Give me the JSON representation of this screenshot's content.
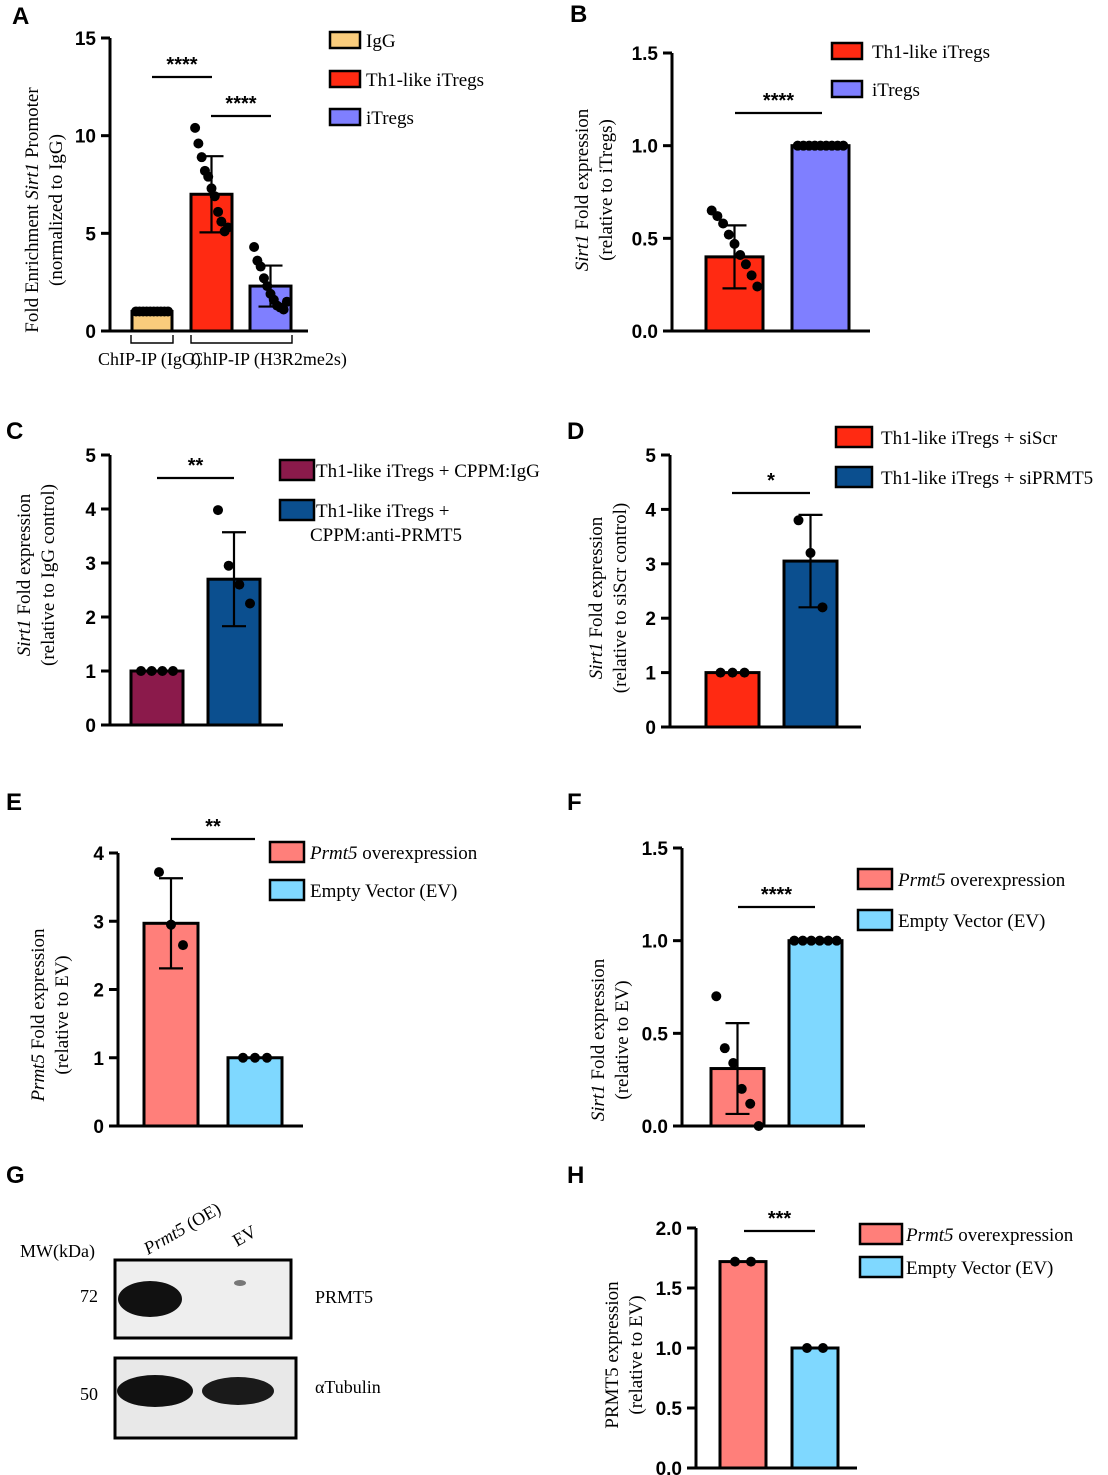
{
  "chart_data": [
    {
      "id": "A",
      "type": "bar",
      "label": "A",
      "ylabel_parts": [
        "Fold Enrichment ",
        "Sirt1",
        " Promoter"
      ],
      "ylabel2": "(normalized to IgG)",
      "yticks": [
        "0",
        "5",
        "10",
        "15"
      ],
      "ylim": [
        0,
        15
      ],
      "categories": [
        "IgG",
        "Th1-like iTregs",
        "iTregs"
      ],
      "series": [
        {
          "name": "IgG",
          "value": 1.0,
          "sd": 0.05,
          "color": "#f9cc7c",
          "points": [
            1,
            1,
            1,
            1,
            1,
            1,
            1,
            1,
            1,
            1
          ]
        },
        {
          "name": "Th1-like iTregs",
          "value": 7.0,
          "sd": 1.95,
          "color": "#ff2a12",
          "points": [
            10.4,
            9.6,
            8.9,
            8.2,
            7.9,
            7.3,
            6.9,
            6.1,
            5.6,
            5.1,
            5.3
          ]
        },
        {
          "name": "iTregs",
          "value": 2.3,
          "sd": 1.05,
          "color": "#7f7fff",
          "points": [
            4.3,
            3.6,
            3.3,
            2.7,
            2.3,
            1.9,
            1.6,
            1.3,
            1.2,
            1.1,
            1.5
          ]
        }
      ],
      "groups": [
        "ChIP-IP (IgG)",
        "ChIP-IP (H3R2me2s)"
      ],
      "comparisons": [
        {
          "pair": [
            0,
            1
          ],
          "label": "****"
        },
        {
          "pair": [
            1,
            2
          ],
          "label": "****"
        }
      ]
    },
    {
      "id": "B",
      "type": "bar",
      "label": "B",
      "ylabel_parts": [
        "Sirt1",
        " Fold expression"
      ],
      "ylabel2": "(relative to iTregs)",
      "yticks": [
        "0.0",
        "0.5",
        "1.0",
        "1.5"
      ],
      "ylim": [
        0,
        1.5
      ],
      "categories": [
        "Th1-like iTregs",
        "iTregs"
      ],
      "series": [
        {
          "name": "Th1-like iTregs",
          "value": 0.4,
          "sd": 0.17,
          "color": "#ff2a12",
          "points": [
            0.65,
            0.62,
            0.58,
            0.52,
            0.47,
            0.41,
            0.36,
            0.3,
            0.24
          ]
        },
        {
          "name": "iTregs",
          "value": 1.0,
          "sd": 0.0,
          "color": "#7f7fff",
          "points": [
            1,
            1,
            1,
            1,
            1,
            1,
            1,
            1,
            1
          ]
        }
      ],
      "comparisons": [
        {
          "pair": [
            0,
            1
          ],
          "label": "****"
        }
      ]
    },
    {
      "id": "C",
      "type": "bar",
      "label": "C",
      "ylabel_parts": [
        "Sirt1",
        " Fold expression"
      ],
      "ylabel2": "(relative to IgG control)",
      "yticks": [
        "0",
        "1",
        "2",
        "3",
        "4",
        "5"
      ],
      "ylim": [
        0,
        5
      ],
      "categories": [
        "Th1-like iTregs + CPPM:IgG",
        "Th1-like iTregs + CPPM:anti-PRMT5"
      ],
      "series": [
        {
          "name": "Th1-like iTregs + CPPM:IgG",
          "value": 1.0,
          "sd": 0.0,
          "color": "#8b1a4b",
          "points": [
            1,
            1,
            1,
            1
          ]
        },
        {
          "name": "Th1-like iTregs + CPPM:anti-PRMT5",
          "value": 2.7,
          "sd": 0.87,
          "color": "#0b4f8f",
          "points": [
            3.98,
            2.95,
            2.6,
            2.25
          ]
        }
      ],
      "legend_lines": [
        [
          "Th1-like iTregs + CPPM:IgG"
        ],
        [
          "Th1-like iTregs +",
          "CPPM:anti-PRMT5"
        ]
      ],
      "comparisons": [
        {
          "pair": [
            0,
            1
          ],
          "label": "**"
        }
      ]
    },
    {
      "id": "D",
      "type": "bar",
      "label": "D",
      "ylabel_parts": [
        "Sirt1",
        " Fold expression"
      ],
      "ylabel2": "(relative to siScr control)",
      "yticks": [
        "0",
        "1",
        "2",
        "3",
        "4",
        "5"
      ],
      "ylim": [
        0,
        5
      ],
      "categories": [
        "Th1-like iTregs + siScr",
        "Th1-like iTregs + siPRMT5"
      ],
      "series": [
        {
          "name": "Th1-like iTregs + siScr",
          "value": 1.0,
          "sd": 0.0,
          "color": "#ff2a12",
          "points": [
            1,
            1,
            1
          ]
        },
        {
          "name": "Th1-like iTregs + siPRMT5",
          "value": 3.05,
          "sd": 0.85,
          "color": "#0b4f8f",
          "points": [
            3.8,
            3.2,
            2.2
          ]
        }
      ],
      "comparisons": [
        {
          "pair": [
            0,
            1
          ],
          "label": "*"
        }
      ]
    },
    {
      "id": "E",
      "type": "bar",
      "label": "E",
      "ylabel_parts": [
        "Prmt5",
        " Fold expression"
      ],
      "ylabel2": "(relative to EV)",
      "yticks": [
        "0",
        "1",
        "2",
        "3",
        "4"
      ],
      "ylim": [
        0,
        4
      ],
      "categories": [
        "Prmt5 overexpression",
        "Empty Vector (EV)"
      ],
      "series": [
        {
          "name": "Prmt5 overexpression",
          "value": 2.97,
          "sd": 0.66,
          "color": "#ff7f7a",
          "points": [
            3.72,
            2.95,
            2.65
          ]
        },
        {
          "name": "Empty Vector (EV)",
          "value": 1.0,
          "sd": 0.0,
          "color": "#7fd8ff",
          "points": [
            1,
            1,
            1
          ]
        }
      ],
      "legend_parts": [
        [
          "Prmt5",
          " overexpression"
        ],
        [
          "",
          "Empty Vector (EV)"
        ]
      ],
      "comparisons": [
        {
          "pair": [
            0,
            1
          ],
          "label": "**"
        }
      ]
    },
    {
      "id": "F",
      "type": "bar",
      "label": "F",
      "ylabel_parts": [
        "Sirt1",
        " Fold expression"
      ],
      "ylabel2": "(relative to EV)",
      "yticks": [
        "0.0",
        "0.5",
        "1.0",
        "1.5"
      ],
      "ylim": [
        0,
        1.5
      ],
      "categories": [
        "Prmt5 overexpression",
        "Empty Vector (EV)"
      ],
      "series": [
        {
          "name": "Prmt5 overexpression",
          "value": 0.31,
          "sd": 0.245,
          "color": "#ff7f7a",
          "points": [
            0.7,
            0.42,
            0.34,
            0.2,
            0.12,
            0.0
          ]
        },
        {
          "name": "Empty Vector (EV)",
          "value": 1.0,
          "sd": 0.0,
          "color": "#7fd8ff",
          "points": [
            1,
            1,
            1,
            1,
            1,
            1
          ]
        }
      ],
      "legend_parts": [
        [
          "Prmt5",
          " overexpression"
        ],
        [
          "",
          "Empty Vector (EV)"
        ]
      ],
      "comparisons": [
        {
          "pair": [
            0,
            1
          ],
          "label": "****"
        }
      ]
    },
    {
      "id": "H",
      "type": "bar",
      "label": "H",
      "ylabel_parts": [
        "PRMT5  expression"
      ],
      "ylabel2": "(relative to EV)",
      "yticks": [
        "0.0",
        "0.5",
        "1.0",
        "1.5",
        "2.0"
      ],
      "ylim": [
        0,
        2
      ],
      "categories": [
        "Prmt5 overexpression",
        "Empty Vector (EV)"
      ],
      "series": [
        {
          "name": "Prmt5 overexpression",
          "value": 1.72,
          "sd": 0.01,
          "color": "#ff7f7a",
          "points": [
            1.72,
            1.72
          ]
        },
        {
          "name": "Empty Vector (EV)",
          "value": 1.0,
          "sd": 0.0,
          "color": "#7fd8ff",
          "points": [
            1,
            1
          ]
        }
      ],
      "legend_parts": [
        [
          "Prmt5",
          " overexpression"
        ],
        [
          "",
          "Empty Vector (EV)"
        ]
      ],
      "comparisons": [
        {
          "pair": [
            0,
            1
          ],
          "label": "***"
        }
      ]
    }
  ],
  "western_blot": {
    "label": "G",
    "mw_header": "MW(kDa)",
    "lane_oe_italic": "Prmt5",
    "lane_oe_rest": " (OE)",
    "lane_ev": "EV",
    "rows": [
      {
        "mw": "72",
        "protein": "PRMT5"
      },
      {
        "mw": "50",
        "protein": "αTubulin"
      }
    ]
  }
}
